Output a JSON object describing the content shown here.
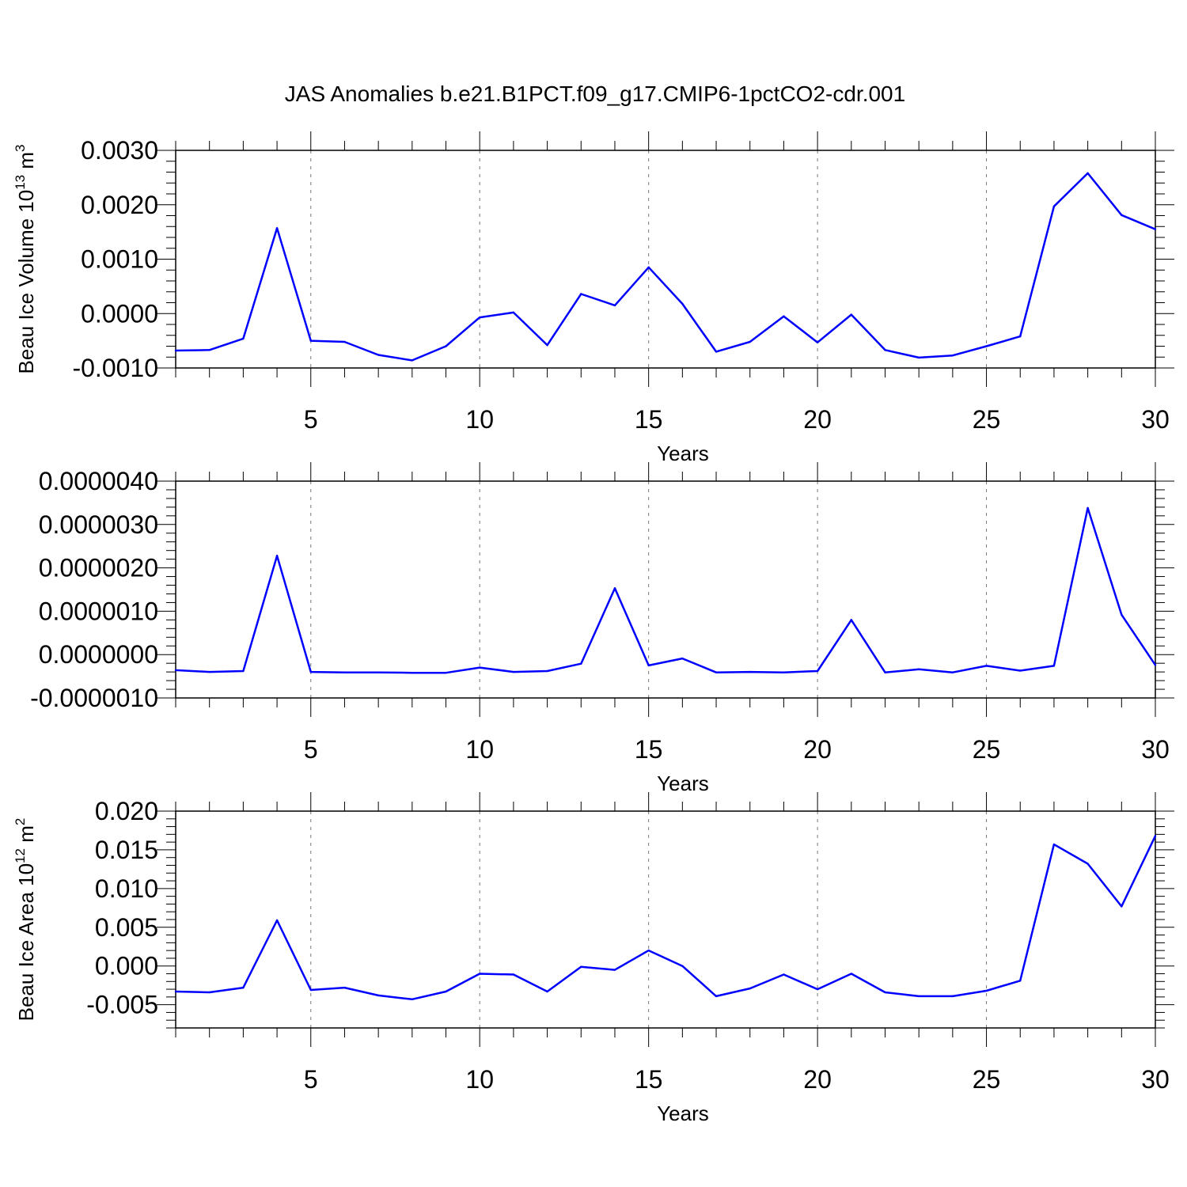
{
  "title": "JAS Anomalies b.e21.B1PCT.f09_g17.CMIP6-1pctCO2-cdr.001",
  "line_color": "#0000ff",
  "chart_data": [
    {
      "type": "line",
      "xlabel": "Years",
      "ylabel": {
        "main": "Beau Ice Volume 10",
        "sup": "13",
        "unit": " m",
        "unit_sup": "3"
      },
      "xlim": [
        1,
        30
      ],
      "ylim": [
        -0.001,
        0.003
      ],
      "x_ticks": [
        5,
        10,
        15,
        20,
        25,
        30
      ],
      "y_ticks": [
        -0.001,
        0.0,
        0.001,
        0.002,
        0.003
      ],
      "y_tick_labels": [
        "-0.0010",
        "0.0000",
        "0.0010",
        "0.0020",
        "0.0030"
      ],
      "x": [
        1,
        2,
        3,
        4,
        5,
        6,
        7,
        8,
        9,
        10,
        11,
        12,
        13,
        14,
        15,
        16,
        17,
        18,
        19,
        20,
        21,
        22,
        23,
        24,
        25,
        26,
        27,
        28,
        29,
        30
      ],
      "values": [
        -0.00068,
        -0.00067,
        -0.00046,
        0.00157,
        -0.0005,
        -0.00052,
        -0.00076,
        -0.00086,
        -0.0006,
        -7e-05,
        2e-05,
        -0.00058,
        0.00036,
        0.00015,
        0.00085,
        0.00018,
        -0.0007,
        -0.00052,
        -5e-05,
        -0.00053,
        -2e-05,
        -0.00067,
        -0.00081,
        -0.00077,
        -0.0006,
        -0.00042,
        0.00197,
        0.00258,
        0.00181,
        0.00155
      ]
    },
    {
      "type": "line",
      "xlabel": "Years",
      "ylabel": null,
      "xlim": [
        1,
        30
      ],
      "ylim": [
        -1e-06,
        4e-06
      ],
      "x_ticks": [
        5,
        10,
        15,
        20,
        25,
        30
      ],
      "y_ticks": [
        -1e-06,
        0.0,
        1e-06,
        2e-06,
        3e-06,
        4e-06
      ],
      "y_tick_labels": [
        "-0.0000010",
        "0.0000000",
        "0.0000010",
        "0.0000020",
        "0.0000030",
        "0.0000040"
      ],
      "x": [
        1,
        2,
        3,
        4,
        5,
        6,
        7,
        8,
        9,
        10,
        11,
        12,
        13,
        14,
        15,
        16,
        17,
        18,
        19,
        20,
        21,
        22,
        23,
        24,
        25,
        26,
        27,
        28,
        29,
        30
      ],
      "values": [
        -3.6e-07,
        -4e-07,
        -3.8e-07,
        2.28e-06,
        -4e-07,
        -4.1e-07,
        -4.1e-07,
        -4.2e-07,
        -4.2e-07,
        -3e-07,
        -4e-07,
        -3.8e-07,
        -2.1e-07,
        1.53e-06,
        -2.5e-07,
        -9e-08,
        -4.1e-07,
        -4e-07,
        -4.1e-07,
        -3.8e-07,
        8e-07,
        -4.1e-07,
        -3.4e-07,
        -4.1e-07,
        -2.6e-07,
        -3.7e-07,
        -2.6e-07,
        3.38e-06,
        9.2e-07,
        -2.4e-07
      ]
    },
    {
      "type": "line",
      "xlabel": "Years",
      "ylabel": {
        "main": "Beau Ice Area 10",
        "sup": "12",
        "unit": " m",
        "unit_sup": "2"
      },
      "xlim": [
        1,
        30
      ],
      "ylim": [
        -0.008,
        0.02
      ],
      "x_ticks": [
        5,
        10,
        15,
        20,
        25,
        30
      ],
      "y_ticks": [
        -0.005,
        0.0,
        0.005,
        0.01,
        0.015,
        0.02
      ],
      "y_tick_labels": [
        "-0.005",
        "0.000",
        "0.005",
        "0.010",
        "0.015",
        "0.020"
      ],
      "x": [
        1,
        2,
        3,
        4,
        5,
        6,
        7,
        8,
        9,
        10,
        11,
        12,
        13,
        14,
        15,
        16,
        17,
        18,
        19,
        20,
        21,
        22,
        23,
        24,
        25,
        26,
        27,
        28,
        29,
        30
      ],
      "values": [
        -0.0033,
        -0.0034,
        -0.0028,
        0.0059,
        -0.0031,
        -0.0028,
        -0.0038,
        -0.0043,
        -0.0033,
        -0.001,
        -0.0011,
        -0.0033,
        -0.0001,
        -0.0005,
        0.002,
        0.0,
        -0.0039,
        -0.0029,
        -0.0011,
        -0.003,
        -0.001,
        -0.0034,
        -0.0039,
        -0.0039,
        -0.0032,
        -0.0019,
        0.0157,
        0.0132,
        0.0077,
        0.0168
      ]
    }
  ]
}
